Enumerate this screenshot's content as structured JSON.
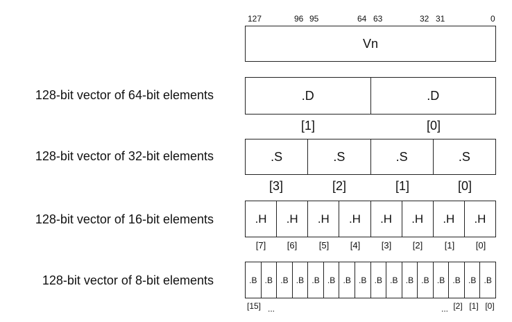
{
  "bit_positions": {
    "b127": "127",
    "b96": "96",
    "b95": "95",
    "b64": "64",
    "b63": "63",
    "b32": "32",
    "b31": "31",
    "b0": "0"
  },
  "register_name": "Vn",
  "rows": [
    {
      "label": "128-bit vector of 64-bit elements",
      "cells": [
        ".D",
        ".D"
      ],
      "indices": [
        "[1]",
        "[0]"
      ]
    },
    {
      "label": "128-bit vector of 32-bit elements",
      "cells": [
        ".S",
        ".S",
        ".S",
        ".S"
      ],
      "indices": [
        "[3]",
        "[2]",
        "[1]",
        "[0]"
      ]
    },
    {
      "label": "128-bit vector of 16-bit elements",
      "cells": [
        ".H",
        ".H",
        ".H",
        ".H",
        ".H",
        ".H",
        ".H",
        ".H"
      ],
      "indices": [
        "[7]",
        "[6]",
        "[5]",
        "[4]",
        "[3]",
        "[2]",
        "[1]",
        "[0]"
      ]
    },
    {
      "label": "128-bit vector of 8-bit elements",
      "cells": [
        ".B",
        ".B",
        ".B",
        ".B",
        ".B",
        ".B",
        ".B",
        ".B",
        ".B",
        ".B",
        ".B",
        ".B",
        ".B",
        ".B",
        ".B",
        ".B"
      ],
      "indices": [
        "[15]",
        "...",
        "...",
        "[2]",
        "[1]",
        "[0]"
      ]
    }
  ]
}
